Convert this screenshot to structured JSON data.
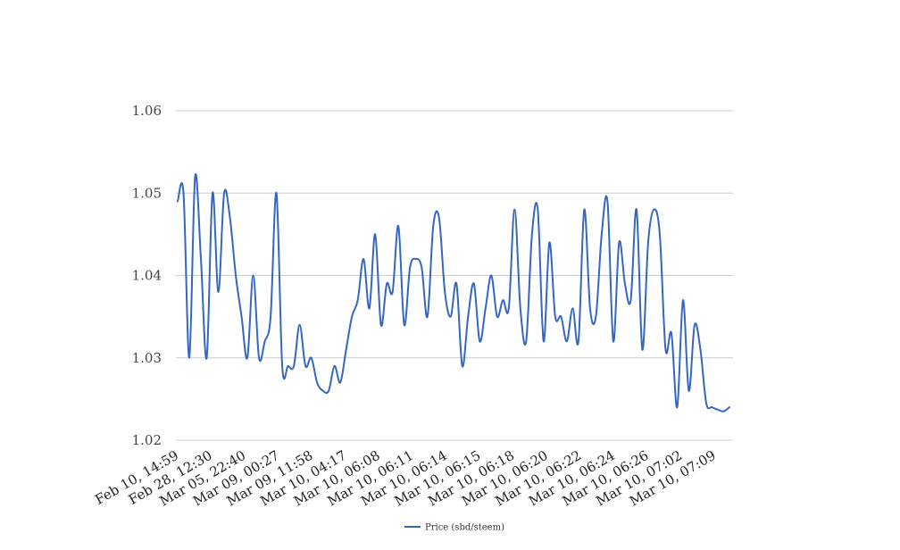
{
  "chart_data": {
    "type": "line",
    "title": "",
    "xlabel": "",
    "ylabel": "",
    "ylim": [
      1.02,
      1.06
    ],
    "yticks": [
      "1.02",
      "1.03",
      "1.04",
      "1.05",
      "1.06"
    ],
    "grid": true,
    "legend_position": "bottom-center",
    "x_tick_labels": [
      "Feb 10, 14:59",
      "Feb 28, 12:30",
      "Mar 05, 22:40",
      "Mar 09, 00:27",
      "Mar 09, 11:58",
      "Mar 10, 04:17",
      "Mar 10, 06:08",
      "Mar 10, 06:11",
      "Mar 10, 06:14",
      "Mar 10, 06:15",
      "Mar 10, 06:18",
      "Mar 10, 06:20",
      "Mar 10, 06:22",
      "Mar 10, 06:24",
      "Mar 10, 06:26",
      "Mar 10, 07:02",
      "Mar 10, 07:09"
    ],
    "series": [
      {
        "name": "Price (sbd/steem)",
        "color": "#3566c0",
        "values": [
          1.049,
          1.05,
          1.03,
          1.052,
          1.042,
          1.03,
          1.05,
          1.038,
          1.05,
          1.047,
          1.04,
          1.035,
          1.03,
          1.04,
          1.03,
          1.032,
          1.035,
          1.05,
          1.029,
          1.029,
          1.029,
          1.034,
          1.029,
          1.03,
          1.027,
          1.026,
          1.026,
          1.029,
          1.027,
          1.031,
          1.035,
          1.037,
          1.042,
          1.036,
          1.045,
          1.034,
          1.039,
          1.038,
          1.046,
          1.034,
          1.041,
          1.042,
          1.041,
          1.035,
          1.046,
          1.047,
          1.038,
          1.035,
          1.039,
          1.029,
          1.035,
          1.039,
          1.032,
          1.036,
          1.04,
          1.035,
          1.037,
          1.036,
          1.048,
          1.036,
          1.032,
          1.045,
          1.048,
          1.032,
          1.044,
          1.035,
          1.035,
          1.032,
          1.036,
          1.032,
          1.048,
          1.036,
          1.035,
          1.045,
          1.049,
          1.032,
          1.044,
          1.039,
          1.037,
          1.048,
          1.031,
          1.044,
          1.048,
          1.045,
          1.031,
          1.033,
          1.024,
          1.037,
          1.026,
          1.034,
          1.031,
          1.0245,
          1.024,
          1.0237,
          1.0235,
          1.024
        ]
      }
    ]
  }
}
